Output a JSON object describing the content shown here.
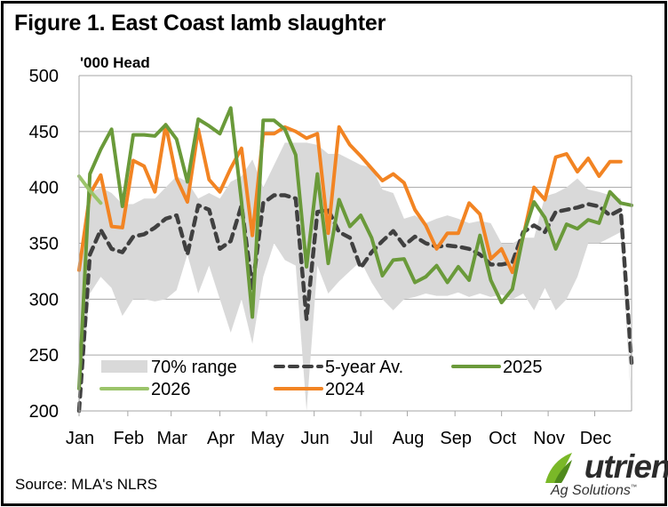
{
  "figure": {
    "title": "Figure 1. East Coast lamb slaughter",
    "unit_label": "'000 Head",
    "source": "Source: MLA's NLRS",
    "logo": {
      "name": "Nutrien",
      "subtitle": "Ag Solutions",
      "trademark": "™"
    }
  },
  "colors": {
    "range": "#d9d9d9",
    "avg": "#404040",
    "y2025": "#6a9a3a",
    "y2026": "#9bc46a",
    "y2024": "#f28423",
    "grid": "#a6a6a6"
  },
  "chart_data": {
    "type": "line",
    "title": "Figure 1. East Coast lamb slaughter",
    "ylabel": "'000 Head",
    "xlabel": "",
    "ylim": [
      200,
      500
    ],
    "yticks": [
      200,
      250,
      300,
      350,
      400,
      450,
      500
    ],
    "x_unit": "week of year",
    "xlim": [
      1,
      52
    ],
    "xtick_labels": [
      "Jan",
      "Feb",
      "Mar",
      "Apr",
      "May",
      "Jun",
      "Jul",
      "Aug",
      "Sep",
      "Oct",
      "Nov",
      "Dec"
    ],
    "xtick_weeks": [
      1,
      5.5,
      9.5,
      14,
      18.3,
      22.7,
      27,
      31.3,
      35.7,
      40,
      44.3,
      48.6
    ],
    "grid": true,
    "legend_position": "bottom",
    "legend": [
      "70% range",
      "5-year Av.",
      "2025",
      "2026",
      "2024"
    ],
    "band": {
      "name": "70% range",
      "x": [
        1,
        2,
        3,
        4,
        5,
        6,
        7,
        8,
        9,
        10,
        11,
        12,
        13,
        14,
        15,
        16,
        17,
        18,
        19,
        20,
        21,
        22,
        23,
        24,
        25,
        26,
        27,
        28,
        29,
        30,
        31,
        32,
        33,
        34,
        35,
        36,
        37,
        38,
        39,
        40,
        41,
        42,
        43,
        44,
        45,
        46,
        47,
        48,
        49,
        50,
        51,
        52
      ],
      "upper": [
        330,
        395,
        400,
        395,
        385,
        385,
        390,
        390,
        400,
        410,
        405,
        390,
        395,
        390,
        405,
        410,
        425,
        400,
        420,
        440,
        440,
        440,
        438,
        430,
        430,
        425,
        420,
        418,
        398,
        395,
        372,
        375,
        368,
        372,
        375,
        372,
        368,
        370,
        368,
        350,
        350,
        355,
        355,
        392,
        395,
        400,
        408,
        398,
        396,
        393,
        390,
        200
      ],
      "lower": [
        200,
        305,
        320,
        310,
        285,
        300,
        300,
        298,
        300,
        308,
        340,
        305,
        330,
        300,
        270,
        300,
        260,
        320,
        350,
        335,
        330,
        200,
        330,
        305,
        316,
        325,
        334,
        315,
        300,
        290,
        300,
        302,
        305,
        303,
        303,
        306,
        302,
        305,
        302,
        304,
        300,
        305,
        290,
        310,
        290,
        300,
        320,
        350,
        350,
        355,
        360,
        200
      ]
    },
    "series": [
      {
        "name": "5-year Av.",
        "x": [
          1,
          2,
          3,
          4,
          5,
          6,
          7,
          8,
          9,
          10,
          11,
          12,
          13,
          14,
          15,
          16,
          17,
          18,
          19,
          20,
          21,
          22,
          23,
          24,
          25,
          26,
          27,
          28,
          29,
          30,
          31,
          32,
          33,
          34,
          35,
          36,
          37,
          38,
          39,
          40,
          41,
          42,
          43,
          44,
          45,
          46,
          47,
          48,
          49,
          50,
          51,
          52
        ],
        "values": [
          200,
          340,
          362,
          345,
          342,
          356,
          358,
          364,
          372,
          375,
          340,
          384,
          380,
          345,
          352,
          384,
          310,
          386,
          393,
          393,
          390,
          282,
          378,
          380,
          360,
          355,
          328,
          342,
          352,
          361,
          348,
          356,
          350,
          347,
          348,
          347,
          345,
          340,
          331,
          331,
          333,
          360,
          366,
          360,
          378,
          380,
          382,
          385,
          383,
          375,
          380,
          243
        ]
      },
      {
        "name": "2025",
        "x": [
          1,
          2,
          3,
          4,
          5,
          6,
          7,
          8,
          9,
          10,
          11,
          12,
          13,
          14,
          15,
          16,
          17,
          18,
          19,
          20,
          21,
          22,
          23,
          24,
          25,
          26,
          27,
          28,
          29,
          30,
          31,
          32,
          33,
          34,
          35,
          36,
          37,
          38,
          39,
          40,
          41,
          42,
          43,
          44,
          45,
          46,
          47,
          48,
          49,
          50,
          51,
          52
        ],
        "values": [
          220,
          412,
          434,
          452,
          383,
          447,
          447,
          446,
          456,
          443,
          405,
          461,
          455,
          448,
          471,
          387,
          284,
          460,
          460,
          452,
          429,
          329,
          412,
          332,
          389,
          365,
          375,
          355,
          321,
          335,
          336,
          315,
          320,
          330,
          315,
          329,
          317,
          357,
          317,
          297,
          309,
          357,
          387,
          373,
          345,
          367,
          363,
          371,
          368,
          396,
          386,
          384
        ]
      },
      {
        "name": "2026",
        "x": [
          1,
          2,
          3
        ],
        "values": [
          410,
          397,
          386
        ]
      },
      {
        "name": "2024",
        "x": [
          1,
          2,
          3,
          4,
          5,
          6,
          7,
          8,
          9,
          10,
          11,
          12,
          13,
          14,
          15,
          16,
          17,
          18,
          19,
          20,
          21,
          22,
          23,
          24,
          25,
          26,
          27,
          28,
          29,
          30,
          31,
          32,
          33,
          34,
          35,
          36,
          37,
          38,
          39,
          40,
          41,
          42,
          43,
          44,
          45,
          46,
          47,
          48,
          49,
          50,
          51
        ],
        "values": [
          326,
          394,
          411,
          365,
          364,
          424,
          419,
          396,
          456,
          408,
          387,
          452,
          407,
          396,
          417,
          435,
          357,
          448,
          448,
          454,
          450,
          444,
          448,
          359,
          454,
          438,
          428,
          417,
          406,
          412,
          404,
          380,
          366,
          345,
          359,
          359,
          386,
          376,
          336,
          345,
          324,
          356,
          400,
          389,
          427,
          430,
          414,
          426,
          410,
          423,
          423
        ]
      }
    ]
  }
}
